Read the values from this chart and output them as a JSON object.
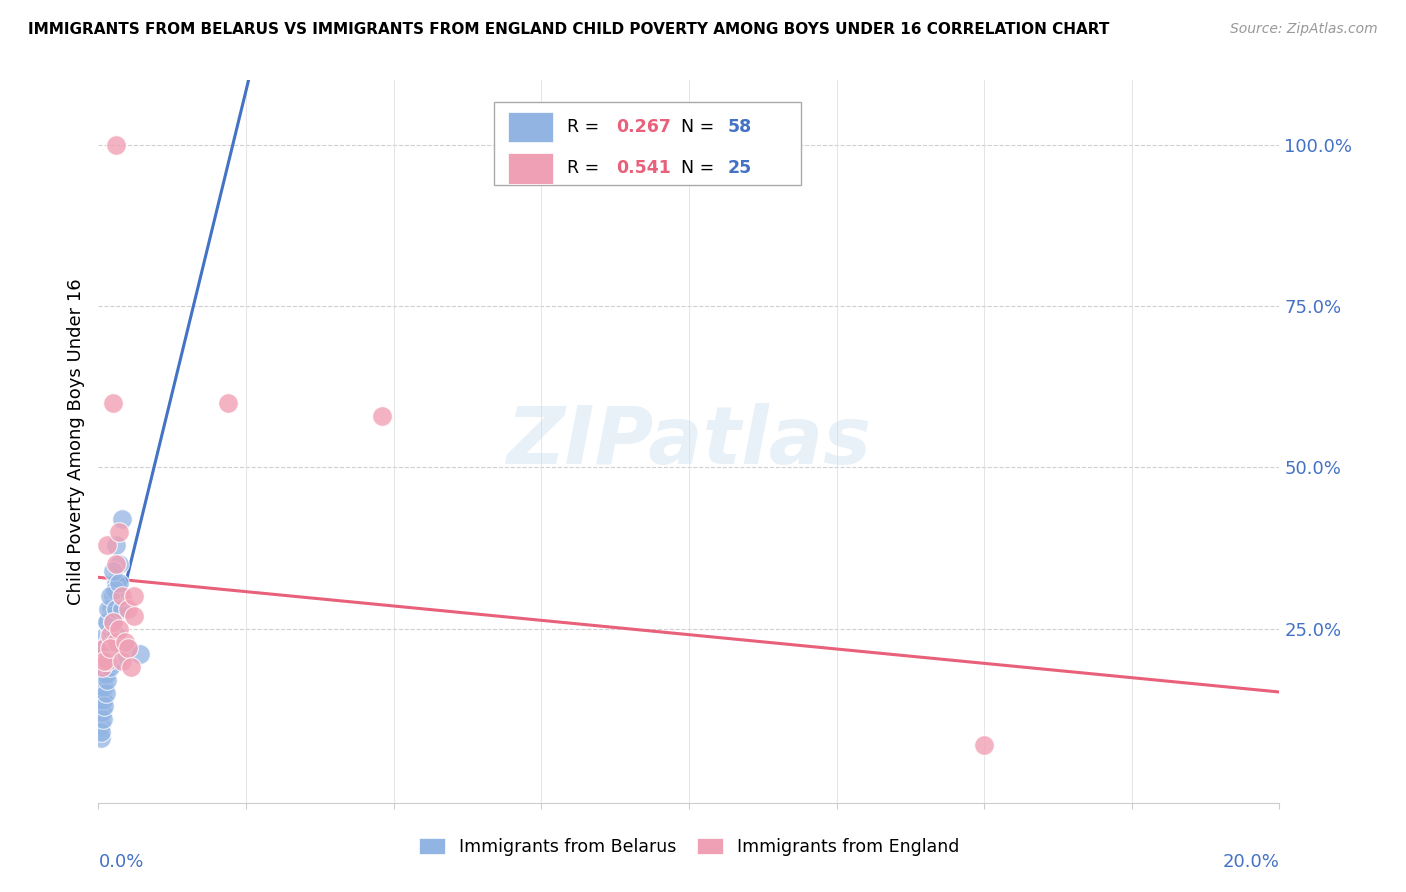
{
  "title": "IMMIGRANTS FROM BELARUS VS IMMIGRANTS FROM ENGLAND CHILD POVERTY AMONG BOYS UNDER 16 CORRELATION CHART",
  "source": "Source: ZipAtlas.com",
  "ylabel": "Child Poverty Among Boys Under 16",
  "belarus_R": 0.267,
  "belarus_N": 58,
  "england_R": 0.541,
  "england_N": 25,
  "belarus_color": "#92b4e3",
  "england_color": "#f0a0b5",
  "trendline_belarus_solid_color": "#4472c4",
  "trendline_belarus_dashed_color": "#7ec8cc",
  "trendline_england_color": "#e8607a",
  "background_color": "#ffffff",
  "watermark": "ZIPatlas",
  "legend_R_color": "#e8607a",
  "legend_N_color": "#4472c4",
  "right_ytick_color": "#4472c4",
  "xlim": [
    0.0,
    0.2
  ],
  "ylim": [
    -0.02,
    1.1
  ],
  "xgrid_vals": [
    0.025,
    0.05,
    0.075,
    0.1,
    0.125,
    0.15,
    0.175
  ],
  "ygrid_vals": [
    0.25,
    0.5,
    0.75,
    1.0
  ],
  "belarus_x": [
    0.0005,
    0.0008,
    0.001,
    0.0012,
    0.0015,
    0.0018,
    0.002,
    0.0022,
    0.0025,
    0.003,
    0.0005,
    0.0007,
    0.001,
    0.0013,
    0.0016,
    0.002,
    0.0023,
    0.0028,
    0.003,
    0.0035,
    0.0005,
    0.0006,
    0.0009,
    0.0011,
    0.0014,
    0.0017,
    0.002,
    0.0024,
    0.003,
    0.004,
    0.0005,
    0.0006,
    0.0008,
    0.001,
    0.0012,
    0.0015,
    0.002,
    0.0025,
    0.003,
    0.0035,
    0.0004,
    0.0006,
    0.0008,
    0.001,
    0.0013,
    0.0016,
    0.002,
    0.003,
    0.004,
    0.005,
    0.0004,
    0.0005,
    0.0007,
    0.0009,
    0.0012,
    0.0015,
    0.002,
    0.007
  ],
  "belarus_y": [
    0.2,
    0.22,
    0.18,
    0.24,
    0.26,
    0.19,
    0.22,
    0.28,
    0.3,
    0.32,
    0.17,
    0.15,
    0.21,
    0.19,
    0.23,
    0.25,
    0.27,
    0.31,
    0.2,
    0.35,
    0.16,
    0.14,
    0.18,
    0.22,
    0.26,
    0.28,
    0.3,
    0.34,
    0.38,
    0.42,
    0.13,
    0.12,
    0.16,
    0.14,
    0.18,
    0.2,
    0.22,
    0.26,
    0.28,
    0.32,
    0.1,
    0.12,
    0.14,
    0.16,
    0.18,
    0.2,
    0.22,
    0.24,
    0.28,
    0.22,
    0.08,
    0.09,
    0.11,
    0.13,
    0.15,
    0.17,
    0.19,
    0.21
  ],
  "england_x": [
    0.0006,
    0.001,
    0.0015,
    0.002,
    0.0025,
    0.003,
    0.0035,
    0.004,
    0.005,
    0.006,
    0.001,
    0.0015,
    0.002,
    0.0025,
    0.003,
    0.0035,
    0.004,
    0.0045,
    0.005,
    0.0055,
    0.022,
    0.048,
    0.006,
    0.15,
    0.003
  ],
  "england_y": [
    0.19,
    0.22,
    0.2,
    0.24,
    0.26,
    0.23,
    0.25,
    0.3,
    0.28,
    0.27,
    0.2,
    0.38,
    0.22,
    0.6,
    0.35,
    0.4,
    0.2,
    0.23,
    0.22,
    0.19,
    0.6,
    0.58,
    0.3,
    0.07,
    1.0
  ],
  "bel_trendline_start_x": 0.0,
  "bel_trendline_end_x": 0.2,
  "eng_trendline_start_x": 0.0,
  "eng_trendline_end_x": 0.2
}
